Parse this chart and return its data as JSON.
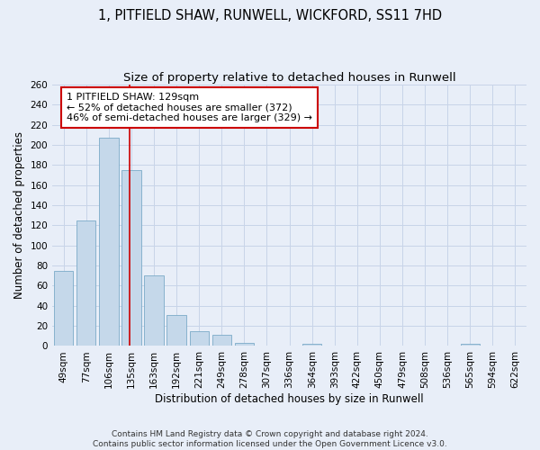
{
  "title": "1, PITFIELD SHAW, RUNWELL, WICKFORD, SS11 7HD",
  "subtitle": "Size of property relative to detached houses in Runwell",
  "xlabel": "Distribution of detached houses by size in Runwell",
  "ylabel": "Number of detached properties",
  "categories": [
    "49sqm",
    "77sqm",
    "106sqm",
    "135sqm",
    "163sqm",
    "192sqm",
    "221sqm",
    "249sqm",
    "278sqm",
    "307sqm",
    "336sqm",
    "364sqm",
    "393sqm",
    "422sqm",
    "450sqm",
    "479sqm",
    "508sqm",
    "536sqm",
    "565sqm",
    "594sqm",
    "622sqm"
  ],
  "values": [
    75,
    125,
    207,
    175,
    70,
    31,
    15,
    11,
    3,
    0,
    0,
    2,
    0,
    0,
    0,
    0,
    0,
    0,
    2,
    0,
    0
  ],
  "bar_color": "#c5d8ea",
  "bar_edge_color": "#7aaac8",
  "grid_color": "#c8d4e8",
  "background_color": "#e8eef8",
  "vline_color": "#cc0000",
  "annotation_text": "1 PITFIELD SHAW: 129sqm\n← 52% of detached houses are smaller (372)\n46% of semi-detached houses are larger (329) →",
  "annotation_box_color": "#ffffff",
  "annotation_box_edge": "#cc0000",
  "ylim": [
    0,
    260
  ],
  "yticks": [
    0,
    20,
    40,
    60,
    80,
    100,
    120,
    140,
    160,
    180,
    200,
    220,
    240,
    260
  ],
  "footer": "Contains HM Land Registry data © Crown copyright and database right 2024.\nContains public sector information licensed under the Open Government Licence v3.0.",
  "title_fontsize": 10.5,
  "subtitle_fontsize": 9.5,
  "axis_label_fontsize": 8.5,
  "tick_fontsize": 7.5,
  "annotation_fontsize": 8.0,
  "footer_fontsize": 6.5
}
